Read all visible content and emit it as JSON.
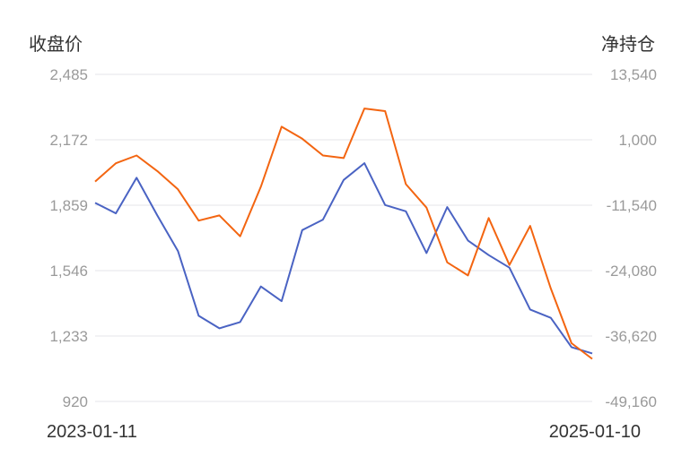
{
  "chart_data": {
    "type": "line",
    "left_axis": {
      "title": "收盘价",
      "ticks": [
        "2,485",
        "2,172",
        "1,859",
        "1,546",
        "1,233",
        "920"
      ],
      "range": [
        920,
        2485
      ]
    },
    "right_axis": {
      "title": "净持仓",
      "ticks": [
        "13,540",
        "1,000",
        "-11,540",
        "-24,080",
        "-36,620",
        "-49,160"
      ],
      "range": [
        -49160,
        13540
      ]
    },
    "x_start_label": "2023-01-11",
    "x_end_label": "2025-01-10",
    "x": [
      "2023-01-11",
      "2023-02-10",
      "2023-03-10",
      "2023-04-10",
      "2023-05-10",
      "2023-06-09",
      "2023-07-10",
      "2023-08-10",
      "2023-09-08",
      "2023-10-10",
      "2023-11-10",
      "2023-12-08",
      "2024-01-10",
      "2024-02-09",
      "2024-03-11",
      "2024-04-10",
      "2024-05-10",
      "2024-06-10",
      "2024-07-10",
      "2024-08-09",
      "2024-09-10",
      "2024-10-10",
      "2024-11-08",
      "2024-12-10",
      "2025-01-10"
    ],
    "series": [
      {
        "axis": "left",
        "color": "#4a63c3",
        "values": [
          1870,
          1820,
          1990,
          1810,
          1640,
          1330,
          1270,
          1300,
          1470,
          1400,
          1740,
          1790,
          1980,
          2060,
          1860,
          1830,
          1630,
          1850,
          1690,
          1620,
          1560,
          1360,
          1320,
          1180,
          1150
        ]
      },
      {
        "axis": "right",
        "color": "#f36511",
        "values": [
          -7000,
          -3500,
          -2000,
          -5000,
          -8500,
          -14500,
          -13500,
          -17500,
          -8000,
          3500,
          1200,
          -2000,
          -2500,
          7000,
          6500,
          -7500,
          -12000,
          -22500,
          -25000,
          -14000,
          -23000,
          -15500,
          -27500,
          -38000,
          -41000
        ]
      }
    ]
  }
}
